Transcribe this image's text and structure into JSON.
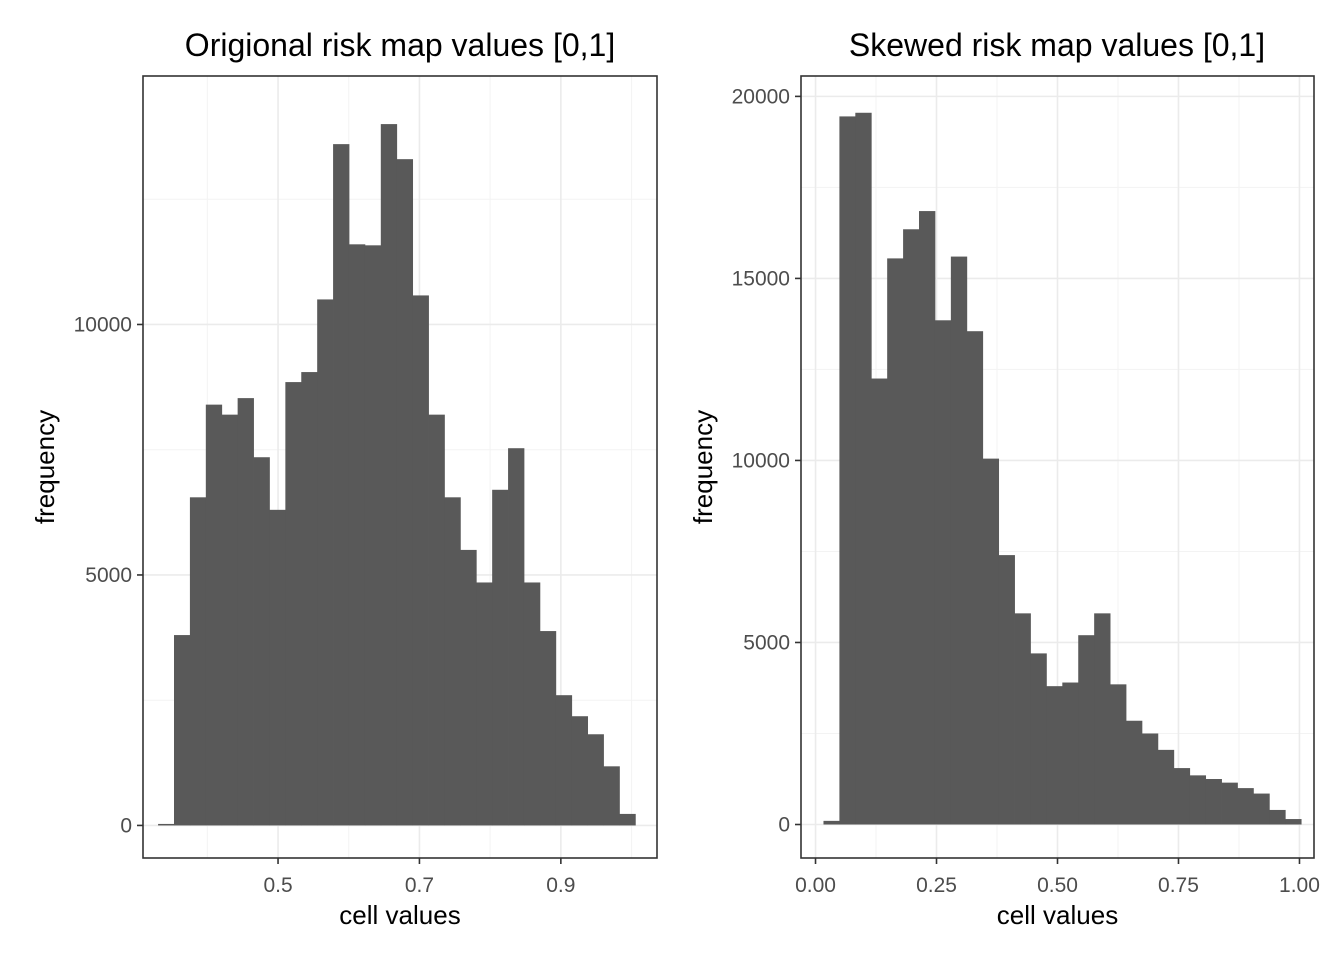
{
  "chart_data": [
    {
      "type": "bar",
      "title": "Origional risk map values [0,1]",
      "xlabel": "cell values",
      "ylabel": "frequency",
      "xlim": [
        0.309,
        1.036
      ],
      "ylim": [
        -650,
        14960
      ],
      "xticks": [
        0.5,
        0.7,
        0.9
      ],
      "xtick_labels": [
        "0.5",
        "0.7",
        "0.9"
      ],
      "xminor": [
        0.4,
        0.6,
        0.8,
        1.0
      ],
      "yticks": [
        0,
        5000,
        10000
      ],
      "ytick_labels": [
        "0",
        "5000",
        "10000"
      ],
      "yminor": [
        2500,
        7500,
        12500
      ],
      "bin_width": 0.0225,
      "bin_centers": [
        0.3416,
        0.3641,
        0.3866,
        0.4091,
        0.4316,
        0.4541,
        0.4766,
        0.4991,
        0.5216,
        0.5441,
        0.5666,
        0.5891,
        0.6116,
        0.6341,
        0.6566,
        0.6791,
        0.7016,
        0.7241,
        0.7466,
        0.7691,
        0.7916,
        0.8141,
        0.8366,
        0.8591,
        0.8816,
        0.9041,
        0.9266,
        0.9491,
        0.9716,
        0.9941
      ],
      "values": [
        30,
        3800,
        6550,
        8400,
        8200,
        8530,
        7350,
        6300,
        8850,
        9050,
        10500,
        13600,
        11600,
        11580,
        14000,
        13300,
        10580,
        8200,
        6550,
        5500,
        4850,
        6700,
        7530,
        4850,
        3880,
        2600,
        2180,
        1820,
        1180,
        230
      ]
    },
    {
      "type": "bar",
      "title": "Skewed risk map values [0,1]",
      "xlabel": "cell values",
      "ylabel": "frequency",
      "xlim": [
        -0.03,
        1.03
      ],
      "ylim": [
        -920,
        20560
      ],
      "xticks": [
        0.0,
        0.25,
        0.5,
        0.75,
        1.0
      ],
      "xtick_labels": [
        "0.00",
        "0.25",
        "0.50",
        "0.75",
        "1.00"
      ],
      "xminor": [
        0.125,
        0.375,
        0.625,
        0.875
      ],
      "yticks": [
        0,
        5000,
        10000,
        15000,
        20000
      ],
      "ytick_labels": [
        "0",
        "5000",
        "10000",
        "15000",
        "20000"
      ],
      "yminor": [
        2500,
        7500,
        12500,
        17500
      ],
      "bin_width": 0.0329,
      "bin_centers": [
        0.0329,
        0.0658,
        0.0987,
        0.1316,
        0.1645,
        0.1974,
        0.2303,
        0.2632,
        0.2961,
        0.329,
        0.3619,
        0.3948,
        0.4277,
        0.4606,
        0.4935,
        0.5264,
        0.5593,
        0.5922,
        0.6251,
        0.658,
        0.6909,
        0.7238,
        0.7567,
        0.7896,
        0.8225,
        0.8554,
        0.8883,
        0.9212,
        0.9541,
        0.987
      ],
      "values": [
        100,
        19450,
        19550,
        12250,
        15550,
        16350,
        16850,
        13850,
        15600,
        13550,
        10050,
        7400,
        5800,
        4700,
        3800,
        3900,
        5200,
        5800,
        3850,
        2850,
        2500,
        2050,
        1550,
        1350,
        1250,
        1150,
        1000,
        850,
        400,
        150
      ]
    }
  ]
}
